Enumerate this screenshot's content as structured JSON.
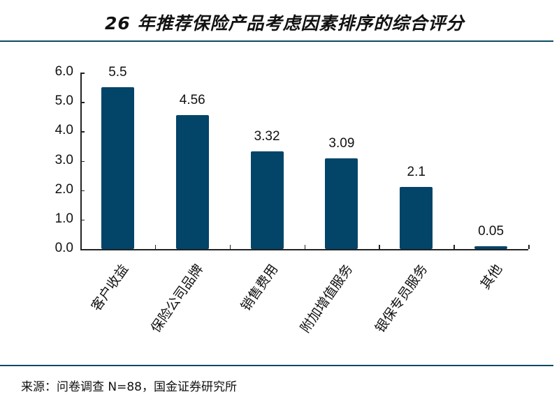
{
  "title": "26 年推荐保险产品考虑因素排序的综合评分",
  "source": "来源：问卷调查 N=88，国金证券研究所",
  "colors": {
    "bar": "#034469",
    "rule": "#0c4a63"
  },
  "chart_data": {
    "type": "bar",
    "title": "26 年推荐保险产品考虑因素排序的综合评分",
    "categories": [
      "客户收益",
      "保险公司品牌",
      "销售费用",
      "附加增值服务",
      "银保专员服务",
      "其他"
    ],
    "values": [
      5.5,
      4.56,
      3.32,
      3.09,
      2.1,
      0.05
    ],
    "value_labels": [
      "5.5",
      "4.56",
      "3.32",
      "3.09",
      "2.1",
      "0.05"
    ],
    "yticks": [
      "0.0",
      "1.0",
      "2.0",
      "3.0",
      "4.0",
      "5.0",
      "6.0"
    ],
    "ylim": [
      0,
      6
    ],
    "xlabel": "",
    "ylabel": "",
    "grid": false,
    "legend": null
  }
}
